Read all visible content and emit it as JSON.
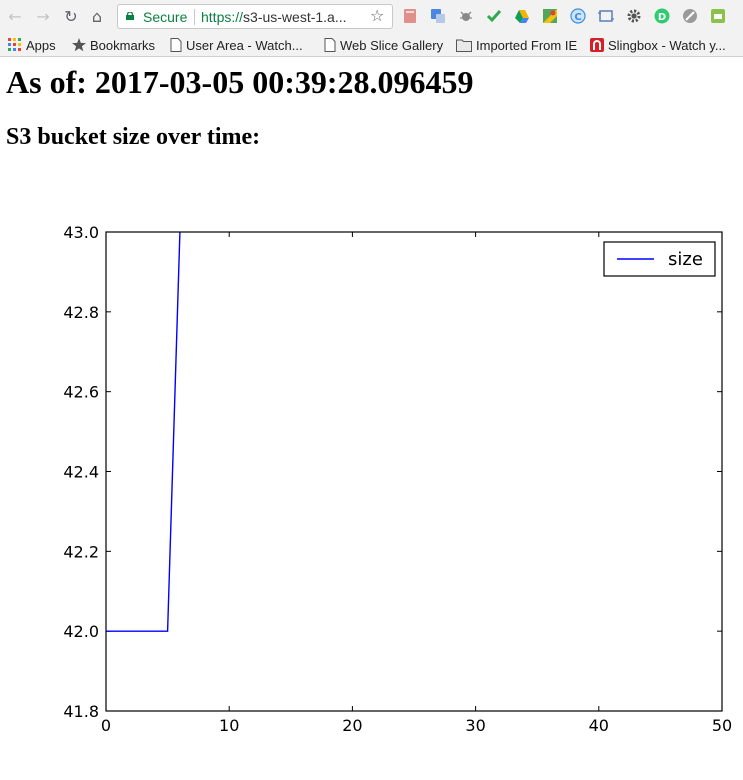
{
  "browser": {
    "address_bar": {
      "security_label": "Secure",
      "url_scheme": "https://",
      "url_host": "s3-us-west-1.a..."
    },
    "bookmarks": [
      {
        "label": "Apps",
        "icon": "apps-grid-icon"
      },
      {
        "label": "Bookmarks",
        "icon": "star-icon"
      },
      {
        "label": "User Area - Watch...",
        "icon": "page-icon"
      },
      {
        "label": "Web Slice Gallery",
        "icon": "page-icon"
      },
      {
        "label": "Imported From IE",
        "icon": "folder-icon"
      },
      {
        "label": "Slingbox - Watch y...",
        "icon": "slingbox-icon"
      }
    ]
  },
  "page": {
    "heading": "As of: 2017-03-05 00:39:28.096459",
    "subheading": "S3 bucket size over time:"
  },
  "chart_data": {
    "type": "line",
    "title": "",
    "xlabel": "",
    "ylabel": "",
    "xlim": [
      0,
      50
    ],
    "ylim": [
      41.8,
      43.0
    ],
    "xticks": [
      0,
      10,
      20,
      30,
      40,
      50
    ],
    "yticks": [
      41.8,
      42.0,
      42.2,
      42.4,
      42.6,
      42.8,
      43.0
    ],
    "grid": false,
    "legend_position": "top-right",
    "series": [
      {
        "name": "size",
        "color": "#0000ff",
        "x": [
          0,
          1,
          2,
          3,
          4,
          5,
          6
        ],
        "y": [
          42,
          42,
          42,
          42,
          42,
          42,
          43
        ]
      }
    ]
  }
}
